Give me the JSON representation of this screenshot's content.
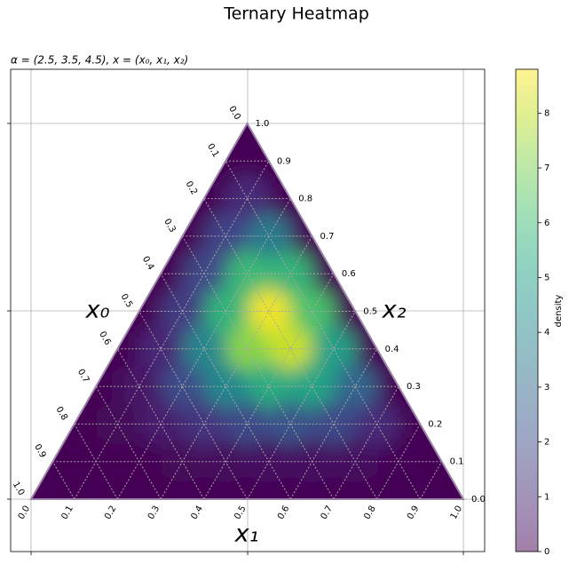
{
  "chart_data": {
    "type": "ternary-heatmap",
    "title": "Ternary Heatmap",
    "subtitle": "α = (2.5, 3.5, 4.5), x = (x₀, x₁, x₂)",
    "axis_labels": {
      "x0": "x₀",
      "x1": "x₁",
      "x2": "x₂"
    },
    "colormap": "viridis",
    "x0ticks": [
      {
        "value": 0,
        "label": "0.0"
      },
      0.1,
      0.2,
      0.3,
      0.4,
      0.5,
      0.6,
      0.7,
      0.8,
      0.9,
      {
        "value": 1,
        "label": "1.0"
      }
    ],
    "x1ticks": [
      {
        "value": 0,
        "label": "0.0"
      },
      0.1,
      0.2,
      0.3,
      0.4,
      0.5,
      0.6,
      0.7,
      0.8,
      0.9,
      {
        "value": 1,
        "label": "1.0"
      }
    ],
    "x2ticks": [
      {
        "value": 0,
        "label": "0.0"
      },
      0.1,
      0.2,
      0.3,
      0.4,
      0.5,
      0.6,
      0.7,
      0.8,
      0.9,
      {
        "value": 1,
        "label": "1.0"
      }
    ],
    "colorbar": {
      "label": "density",
      "lim": [
        0,
        8.8
      ],
      "ticks": [
        0,
        1,
        2,
        3,
        4,
        5,
        6,
        7,
        8
      ]
    },
    "heatmap": {
      "x0": [
        0,
        0,
        0,
        0,
        0,
        0,
        0,
        0,
        0,
        0,
        0,
        0.1,
        0.1,
        0.1,
        0.1,
        0.1,
        0.1,
        0.1,
        0.1,
        0.1,
        0.1,
        0.2,
        0.2,
        0.2,
        0.2,
        0.2,
        0.2,
        0.2,
        0.2,
        0.2,
        0.3,
        0.3,
        0.3,
        0.3,
        0.3,
        0.3,
        0.3,
        0.3,
        0.4,
        0.4,
        0.4,
        0.4,
        0.4,
        0.4,
        0.4,
        0.5,
        0.5,
        0.5,
        0.5,
        0.5,
        0.5,
        0.6,
        0.6,
        0.6,
        0.6,
        0.6,
        0.7,
        0.7,
        0.7,
        0.7,
        0.8,
        0.8,
        0.8,
        0.9,
        0.9,
        1
      ],
      "x1": [
        0,
        0.1,
        0.2,
        0.3,
        0.4,
        0.5,
        0.6,
        0.7,
        0.8,
        0.9,
        1,
        0,
        0.1,
        0.2,
        0.3,
        0.4,
        0.5,
        0.6,
        0.7,
        0.8,
        0.9,
        0,
        0.1,
        0.2,
        0.3,
        0.4,
        0.5,
        0.6,
        0.7,
        0.8,
        0,
        0.1,
        0.2,
        0.3,
        0.4,
        0.5,
        0.6,
        0.7,
        0,
        0.1,
        0.2,
        0.3,
        0.4,
        0.5,
        0.6,
        0,
        0.1,
        0.2,
        0.3,
        0.4,
        0.5,
        0,
        0.1,
        0.2,
        0.3,
        0.4,
        0,
        0.1,
        0.2,
        0.3,
        0,
        0.1,
        0.2,
        0,
        0.1,
        0
      ],
      "x2": [
        1,
        0.9,
        0.8,
        0.7,
        0.6,
        0.5,
        0.4,
        0.3,
        0.2,
        0.1,
        0,
        0.9,
        0.8,
        0.7,
        0.6,
        0.5,
        0.4,
        0.3,
        0.2,
        0.1,
        0,
        0.8,
        0.7,
        0.6,
        0.5,
        0.4,
        0.3,
        0.2,
        0.1,
        0,
        0.7,
        0.6,
        0.5,
        0.4,
        0.3,
        0.2,
        0.1,
        0,
        0.6,
        0.5,
        0.4,
        0.3,
        0.2,
        0.1,
        0,
        0.5,
        0.4,
        0.3,
        0.2,
        0.1,
        0,
        0.4,
        0.3,
        0.2,
        0.1,
        0,
        0.3,
        0.2,
        0.1,
        0,
        0.2,
        0.1,
        0,
        0.1,
        0,
        0
      ],
      "values": [
        0,
        0,
        0,
        0,
        0,
        0,
        0,
        0,
        0,
        0,
        0,
        0,
        1.01,
        3.58,
        5.75,
        6.24,
        4.99,
        2.88,
        1.02,
        0.13,
        0,
        0,
        1.79,
        5.9,
        8.6,
        8.08,
        5.16,
        1.97,
        0.26,
        0,
        0,
        1.92,
        5.73,
        7.23,
        5.42,
        2.29,
        0.32,
        0,
        0,
        1.56,
        4.04,
        4.07,
        2.02,
        0.31,
        0,
        0,
        1,
        2.06,
        1.38,
        0.25,
        0,
        0,
        0.48,
        0.66,
        0.16,
        0,
        0,
        0.15,
        0.07,
        0,
        0,
        0.02,
        0,
        0,
        0,
        0
      ]
    }
  }
}
